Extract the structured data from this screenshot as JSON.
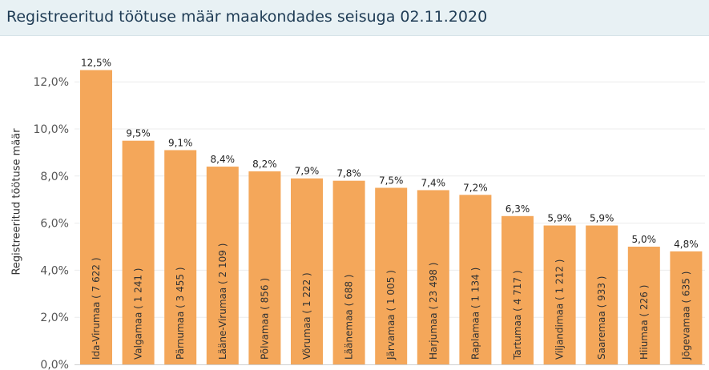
{
  "header": {
    "title": "Registreeritud töötuse määr maakondades seisuga 02.11.2020"
  },
  "chart_data": {
    "type": "bar",
    "title": "Registreeritud töötuse määr maakondades seisuga 02.11.2020",
    "xlabel": "",
    "ylabel": "Registreeritud töötuse määr",
    "ylim": [
      0,
      13
    ],
    "yticks": [
      0,
      2,
      4,
      6,
      8,
      10,
      12
    ],
    "ytick_labels": [
      "0,0%",
      "2,0%",
      "4,0%",
      "6,0%",
      "8,0%",
      "10,0%",
      "12,0%"
    ],
    "categories": [
      "Ida-Virumaa ( 7 622 )",
      "Valgamaa ( 1 241 )",
      "Pärnumaa ( 3 455 )",
      "Lääne-Virumaa ( 2 109 )",
      "Põlvamaa ( 856 )",
      "Võrumaa ( 1 222 )",
      "Läänemaa ( 688 )",
      "Järvamaa ( 1 005 )",
      "Harjumaa ( 23 498 )",
      "Raplamaa ( 1 134 )",
      "Tartumaa ( 4 717 )",
      "Viljandimaa ( 1 212 )",
      "Saaremaa ( 933 )",
      "Hiiumaa ( 226 )",
      "Jõgevamaa ( 635 )"
    ],
    "values": [
      12.5,
      9.5,
      9.1,
      8.4,
      8.2,
      7.9,
      7.8,
      7.5,
      7.4,
      7.2,
      6.3,
      5.9,
      5.9,
      5.0,
      4.8
    ],
    "value_labels": [
      "12,5%",
      "9,5%",
      "9,1%",
      "8,4%",
      "8,2%",
      "7,9%",
      "7,8%",
      "7,5%",
      "7,4%",
      "7,2%",
      "6,3%",
      "5,9%",
      "5,9%",
      "5,0%",
      "4,8%"
    ],
    "bar_color": "#f4a75a",
    "grid": true,
    "legend": "none"
  }
}
